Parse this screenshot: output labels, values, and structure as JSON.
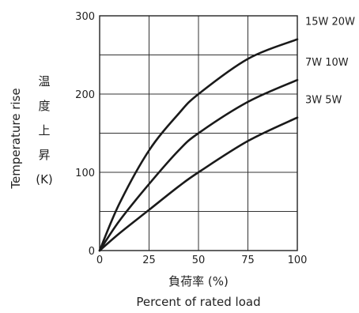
{
  "chart_data": {
    "type": "line",
    "title": "",
    "xlabel": "負荷率 (%)",
    "xlabel_en": "Percent of rated load",
    "ylabel": "Temperature rise",
    "ylabel_jp": [
      "温",
      "度",
      "上",
      "昇"
    ],
    "yunit": "(K)",
    "xlim": [
      0,
      100
    ],
    "ylim": [
      0,
      300
    ],
    "xticks": [
      0,
      25,
      50,
      75,
      100
    ],
    "yticks": [
      0,
      100,
      200,
      300
    ],
    "x_grid_step": 25,
    "y_grid_step": 50,
    "grid": true,
    "x": [
      0,
      10,
      25,
      40,
      50,
      75,
      100
    ],
    "series": [
      {
        "name": "15W 20W",
        "values": [
          0,
          60,
          128,
          175,
          200,
          245,
          270
        ]
      },
      {
        "name": "7W 10W",
        "values": [
          0,
          38,
          85,
          128,
          150,
          190,
          218
        ]
      },
      {
        "name": "3W 5W",
        "values": [
          0,
          22,
          52,
          82,
          100,
          140,
          170
        ]
      }
    ]
  }
}
